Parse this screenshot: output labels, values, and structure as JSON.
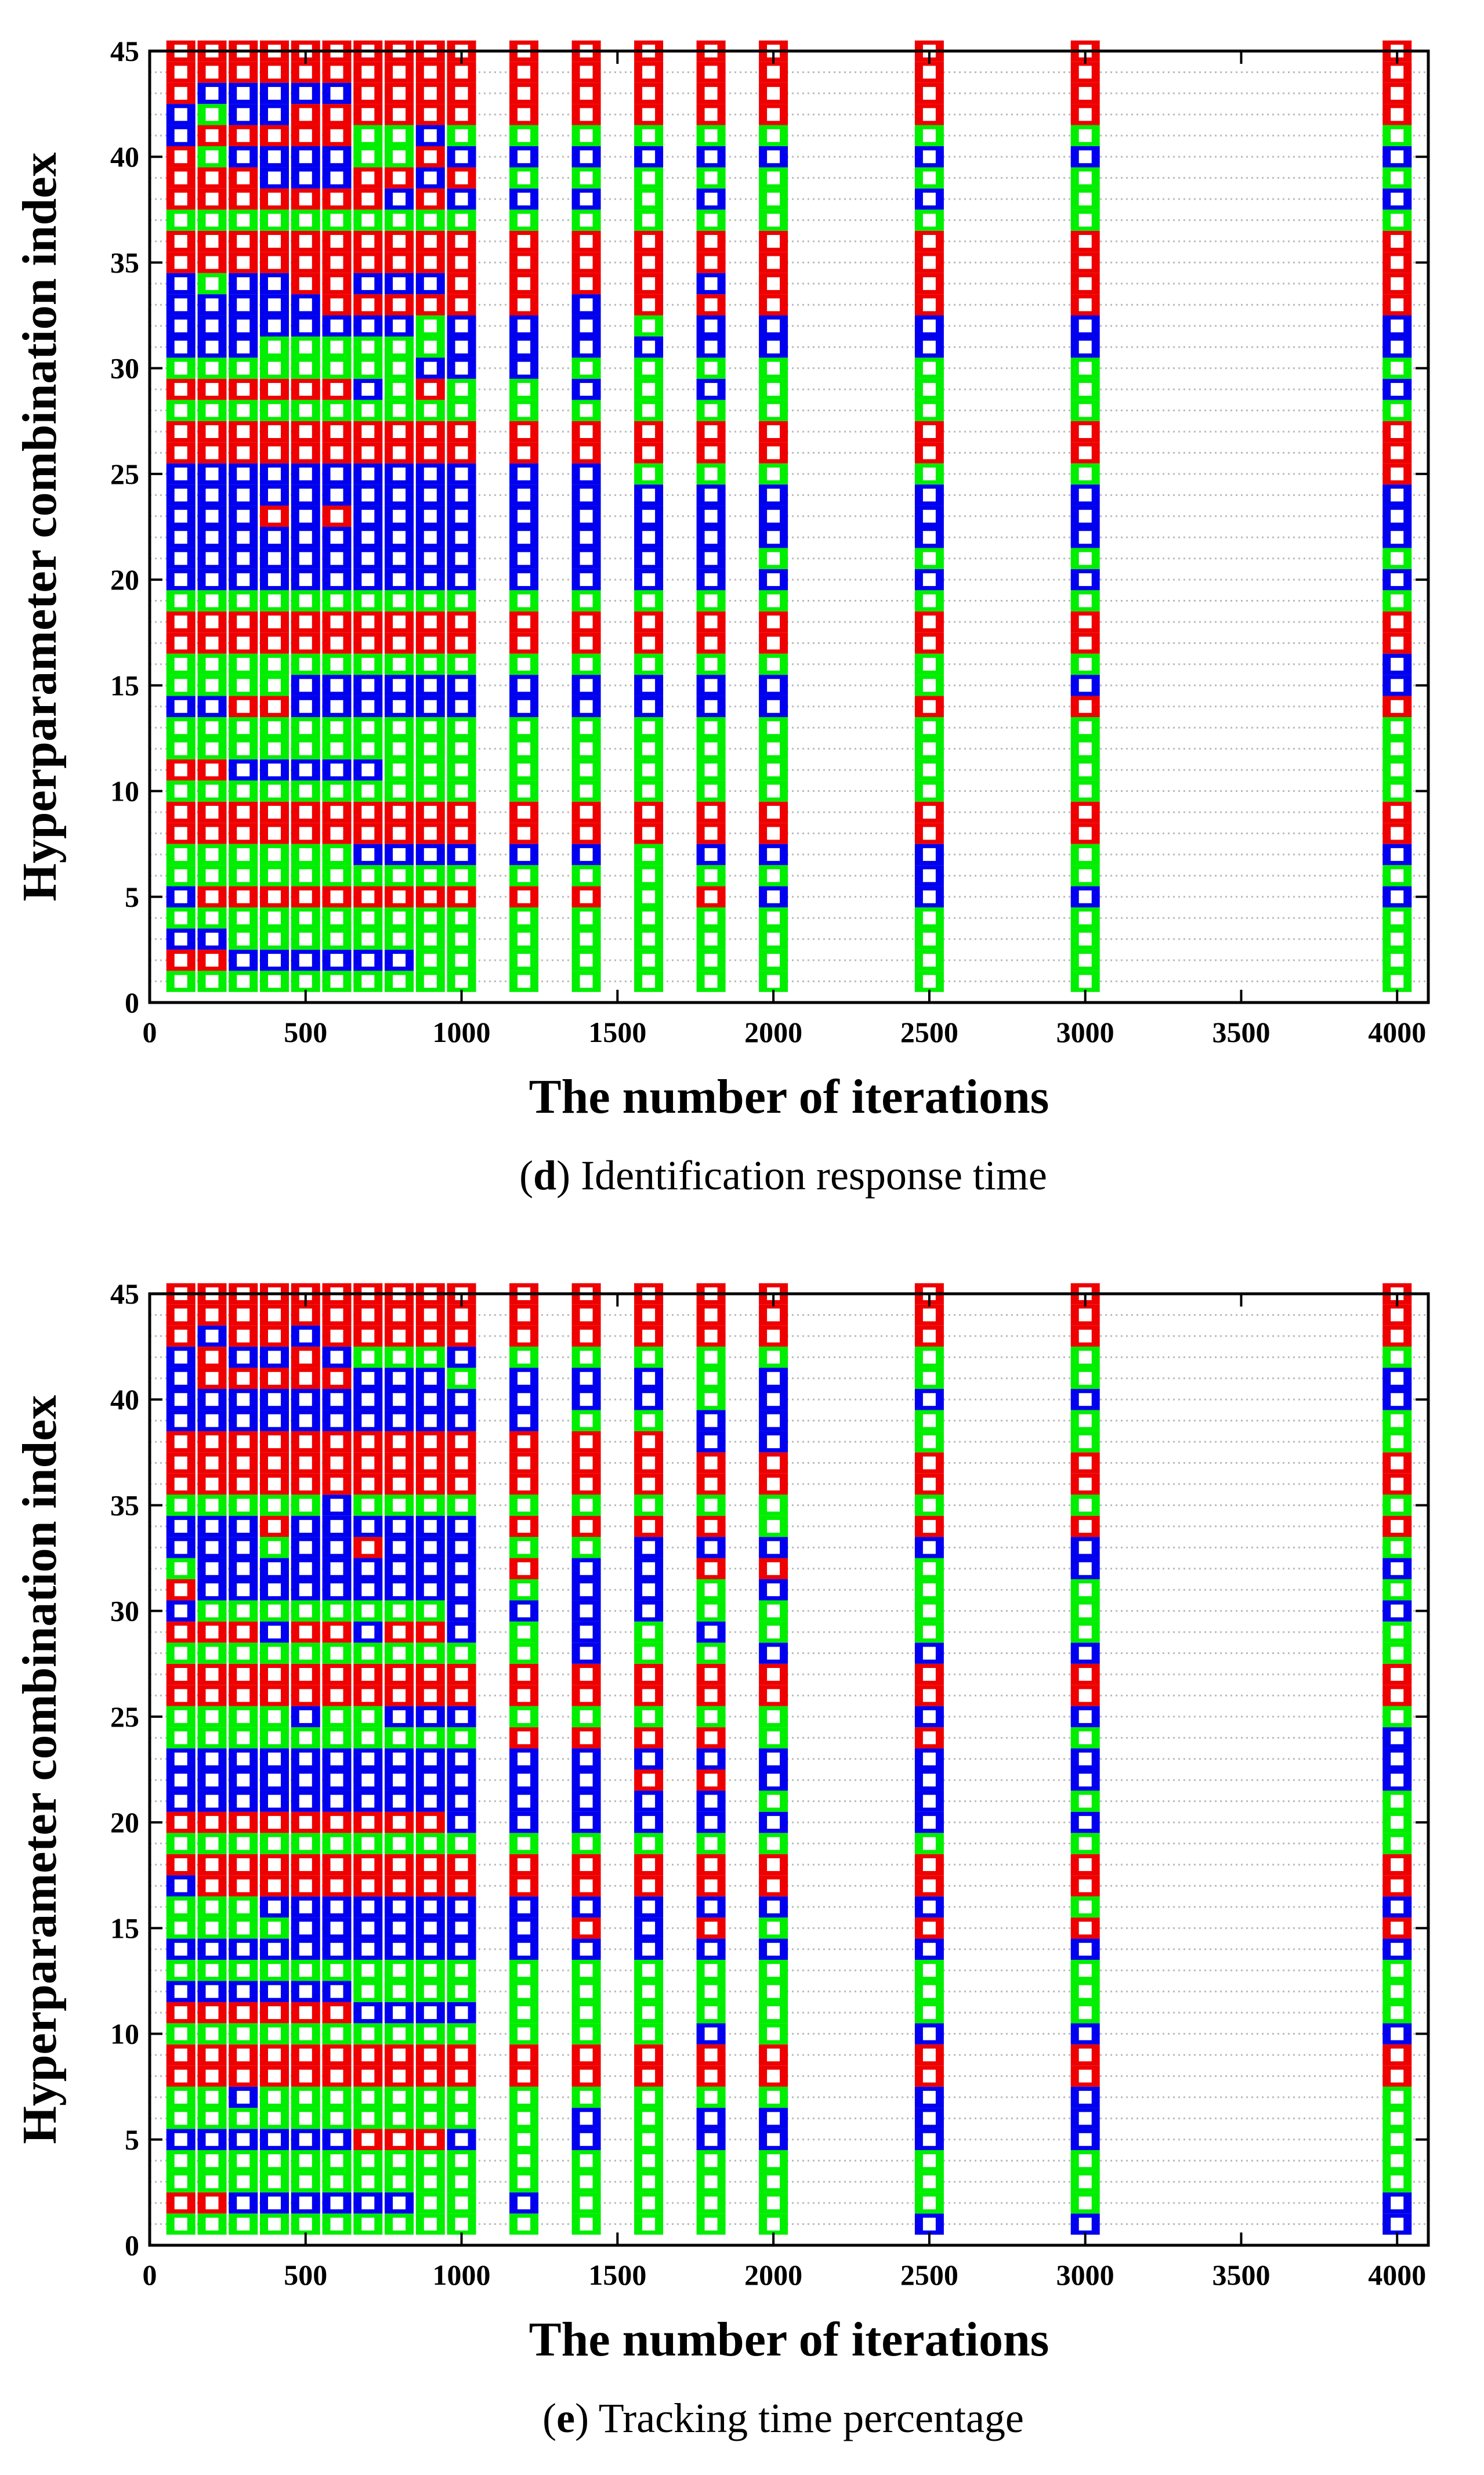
{
  "colors": {
    "low": "#00ee00",
    "mid": "#0000ee",
    "high": "#ee0000",
    "marker_fill": "#ffffff",
    "grid": "#bbbbbb",
    "axis": "#000000"
  },
  "chart_data": [
    {
      "type": "heatmap",
      "title": "",
      "caption_letter": "d",
      "caption_text": "Identification response time",
      "xlabel": "The number of iterations",
      "ylabel": "Hyperparameter combination index",
      "xlim": [
        0,
        4100
      ],
      "ylim": [
        0,
        45
      ],
      "xticks": [
        "0",
        "500",
        "1000",
        "1500",
        "2000",
        "2500",
        "3000",
        "3500",
        "4000"
      ],
      "yticks": [
        "0",
        "5",
        "10",
        "15",
        "20",
        "25",
        "30",
        "35",
        "40",
        "45"
      ],
      "x": [
        100,
        200,
        300,
        400,
        500,
        600,
        700,
        800,
        900,
        1000,
        1200,
        1400,
        1600,
        1800,
        2000,
        2500,
        3000,
        4000
      ],
      "y_index": [
        1,
        2,
        3,
        4,
        5,
        6,
        7,
        8,
        9,
        10,
        11,
        12,
        13,
        14,
        15,
        16,
        17,
        18,
        19,
        20,
        21,
        22,
        23,
        24,
        25,
        26,
        27,
        28,
        29,
        30,
        31,
        32,
        33,
        34,
        35,
        36,
        37,
        38,
        39,
        40,
        41,
        42,
        43,
        44,
        45
      ],
      "legend": {
        "G": "green",
        "B": "blue",
        "R": "red"
      },
      "rows": [
        "GGGGGGGGGGGGGGGGGG",
        "RRBBBBBBGGGGGGGGGG",
        "BBGGGGGGGGGGGGGGGG",
        "GGGGGGGGGGGGGGGGGG",
        "BRRRRRRRRRRRGRBBBB",
        "GGGGGGGGGGGGGGGBGG",
        "GGGGGGBBBBBBGBBBGB",
        "RRRRRRRRRRRRRRRRRR",
        "RRRRRRRRRRRRRRRRRR",
        "GGGGGGGGGGGGGGGGGG",
        "RRBBBBBGGGGGGGGGGG",
        "GGGGGGGGGGGGGGGGGG",
        "GGGGGGGGGGGGGGGGGG",
        "BBRRBBBBBBBBBBBRRR",
        "GGGGBBBBBBBBBBBGBB",
        "GGGGGGGGGGGGGGGGGB",
        "RRRRRRRRRRRRRRRRRR",
        "RRRRRRRRRRRRRRRRRR",
        "GGGGGGGGGGGGGGGGGG",
        "BBBBBBBBBBBBBBBBBB",
        "BBBBBBBBBBBBBBGGGG",
        "BBBBBBBBBBBBBBBBBB",
        "BBBRBRBBBBBBBBBBBB",
        "BBBBBBBBBBBBBBBBBB",
        "BBBBBBBBBBBBGGGGGR",
        "RRRRRRRRRRRRRRRRRR",
        "RRRRRRRRRRRRRRRRRR",
        "GGGGGGGGGGGGGGGGGG",
        "RRRRRRBGRGGBGBGGGB",
        "GGGGGGGGBBBGGGGGGG",
        "BBBGGGGGGBBBBBBBBB",
        "BBBBBBBBGBBBGBBBBB",
        "BBBBBRRRRRRBRRRRRR",
        "BGBBRRBBBRRRRBRRRR",
        "RRRRRRRRRRRRRRRRRR",
        "RRRRRRRRRRRRRRRRRR",
        "GGGGGGGGGGGGGGGGGG",
        "RRRRRRRBRBBBGBGBGB",
        "RRRBBBRRBRGGGGGGGG",
        "RGBBBBGGRBBBBBBBBB",
        "BRRRRRGGBGGGGGGGGG",
        "BGBBRRRRRRRRRRRRRR",
        "RBBBBBRRRRRRRRRRRR",
        "RRRRRRRRRRRRRRRRRR",
        "RRRRRRRRRRRRRRRRRR"
      ]
    },
    {
      "type": "heatmap",
      "title": "",
      "caption_letter": "e",
      "caption_text": "Tracking time percentage",
      "xlabel": "The number of iterations",
      "ylabel": "Hyperparameter combination index",
      "xlim": [
        0,
        4100
      ],
      "ylim": [
        0,
        45
      ],
      "xticks": [
        "0",
        "500",
        "1000",
        "1500",
        "2000",
        "2500",
        "3000",
        "3500",
        "4000"
      ],
      "yticks": [
        "0",
        "5",
        "10",
        "15",
        "20",
        "25",
        "30",
        "35",
        "40",
        "45"
      ],
      "x": [
        100,
        200,
        300,
        400,
        500,
        600,
        700,
        800,
        900,
        1000,
        1200,
        1400,
        1600,
        1800,
        2000,
        2500,
        3000,
        4000
      ],
      "y_index": [
        1,
        2,
        3,
        4,
        5,
        6,
        7,
        8,
        9,
        10,
        11,
        12,
        13,
        14,
        15,
        16,
        17,
        18,
        19,
        20,
        21,
        22,
        23,
        24,
        25,
        26,
        27,
        28,
        29,
        30,
        31,
        32,
        33,
        34,
        35,
        36,
        37,
        38,
        39,
        40,
        41,
        42,
        43,
        44,
        45
      ],
      "legend": {
        "G": "green",
        "B": "blue",
        "R": "red"
      },
      "rows": [
        "GGGGGGGGGGGGGGGBBB",
        "RRBBBBBBGGBGGGGGGB",
        "GGGGGGGGGGGGGGGGGG",
        "GGGGGGGGGGGGGGGGGG",
        "BBBBBBRRRBGBGBBBBG",
        "GGGGGGGGGGGBGBBBBG",
        "GGBGGGGGGGGGGGGBBG",
        "RRRRRRRRRRRRRRRRRR",
        "RRRRRRRRRRRRRRRRRR",
        "GGGGGGGGGGGGGBGBBB",
        "RRRRRRBBBBGGGGGGGG",
        "BBBBBBGGGGGGGGGGGG",
        "GGGGGGGGGGGGGGGGGG",
        "BBBBBBBBBBBBBBBBBB",
        "GGGGBBBBBBBRBRGRRR",
        "GGGBBBBBBBBBBBBBGB",
        "BRRRRRRRRRRRRRRRRR",
        "RRRRRRRRRRRRRRRRRR",
        "GGGGGGGGGGGGGGGGGG",
        "RRRRRRRRRBBBBBBBBG",
        "BBBBBBBBBBBBBBGBGG",
        "BBBBBBBBBBBBRRBBBB",
        "BBBBBBBBBBBBBBBBBB",
        "GGGGGGGGGGRRRRGRGB",
        "GGGGBGGBBBGGGGGBBG",
        "RRRRRRRRRRRRRRRRRR",
        "RRRRRRRRRRRRRRRRRR",
        "GGGGGGGGGGGBGGBBBG",
        "RRRBRRBRRBGBGBGGGG",
        "BGGGGGGGGBBBBGGGGB",
        "RBBBBBBBBBGBBGBGGG",
        "GBBBBBBBBBRBBRRGBB",
        "BBBGBBRBBBGGBBBBBG",
        "BBBRBBBBBBRRRRGRRR",
        "GGGGGBGGGGGGGGGGGG",
        "RRRRRRRRRRRRRRRRRR",
        "RRRRRRRRRRRRRRRRRR",
        "RRRRRRRRRRRRRBBGGG",
        "BBBBBBBBBBBGGBBGGG",
        "BBBBBBBBBBBBBGBBBB",
        "BRRRRRBBBGBBBGBGGB",
        "BRBBRBGGGBGGGGGGGG",
        "RBRRBRRRRRRRRRRRRR",
        "RRRRRRRRRRRRRRRRRR",
        "RRRRRRRRRRRRRRRRRR"
      ]
    }
  ]
}
